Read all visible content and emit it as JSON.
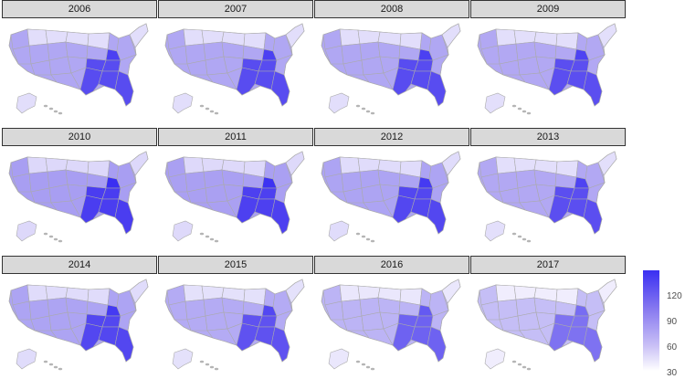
{
  "panels": [
    {
      "year": "2006",
      "tone": 0.85
    },
    {
      "year": "2007",
      "tone": 0.85
    },
    {
      "year": "2008",
      "tone": 0.85
    },
    {
      "year": "2009",
      "tone": 0.82
    },
    {
      "year": "2010",
      "tone": 1.0
    },
    {
      "year": "2011",
      "tone": 0.97
    },
    {
      "year": "2012",
      "tone": 0.9
    },
    {
      "year": "2013",
      "tone": 0.82
    },
    {
      "year": "2014",
      "tone": 0.9
    },
    {
      "year": "2015",
      "tone": 0.78
    },
    {
      "year": "2016",
      "tone": 0.62
    },
    {
      "year": "2017",
      "tone": 0.45
    }
  ],
  "legend": {
    "ticks": [
      "120",
      "90",
      "60",
      "30"
    ],
    "tick_values": [
      120,
      90,
      60,
      30
    ],
    "min": 30,
    "max": 140,
    "low_color": "#ffffff",
    "high_color": "#3a2ff2"
  },
  "colors": {
    "strip_fill": "#d9d9d9",
    "state_border": "#aaaaaa",
    "base_state": "#a89ef2",
    "light_state": "#ddd8fa",
    "dark_state": "#4a3df0",
    "hotspot": "#3a2ff2"
  }
}
